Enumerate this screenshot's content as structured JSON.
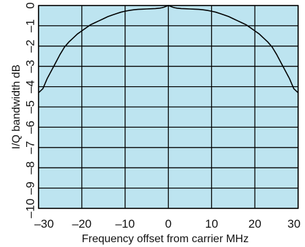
{
  "chart_data": {
    "type": "line",
    "title": "",
    "xlabel": "Frequency offset from carrier MHz",
    "ylabel": "I/Q bandwidth dB",
    "xlim": [
      -30,
      30
    ],
    "ylim": [
      -10,
      0
    ],
    "xticks": [
      -30,
      -20,
      -10,
      0,
      10,
      20,
      30
    ],
    "xtick_labels": [
      "–30",
      "–20",
      "–10",
      "0",
      "10",
      "20",
      "30"
    ],
    "yticks": [
      0,
      -1,
      -2,
      -3,
      -4,
      -5,
      -6,
      -7,
      -8,
      -9,
      -10
    ],
    "ytick_labels": [
      "0",
      "–1",
      "–2",
      "–3",
      "–4",
      "–5",
      "–6",
      "–7",
      "–8",
      "–9",
      "–10"
    ],
    "grid": true,
    "background_color": "#bde4f0",
    "line_color": "#000000",
    "series": [
      {
        "x": [
          -30,
          -29,
          -28,
          -27,
          -26,
          -25,
          -24,
          -23,
          -22,
          -21,
          -20,
          -19,
          -18,
          -17,
          -16,
          -15,
          -14,
          -13,
          -12,
          -11,
          -10,
          -9,
          -8,
          -7,
          -6,
          -5,
          -4,
          -3,
          -2,
          -1.5,
          -1,
          -0.5,
          0,
          0.5,
          1,
          1.5,
          2,
          3,
          4,
          5,
          6,
          7,
          8,
          9,
          10,
          11,
          12,
          13,
          14,
          15,
          16,
          17,
          18,
          19,
          20,
          21,
          22,
          23,
          24,
          25,
          26,
          27,
          28,
          29,
          30
        ],
        "y": [
          -4.3,
          -4.1,
          -3.6,
          -3.2,
          -2.8,
          -2.4,
          -2.05,
          -1.8,
          -1.6,
          -1.4,
          -1.25,
          -1.1,
          -0.95,
          -0.85,
          -0.75,
          -0.65,
          -0.55,
          -0.47,
          -0.4,
          -0.33,
          -0.28,
          -0.24,
          -0.21,
          -0.19,
          -0.18,
          -0.17,
          -0.16,
          -0.15,
          -0.13,
          -0.11,
          -0.08,
          -0.04,
          0,
          -0.04,
          -0.08,
          -0.11,
          -0.13,
          -0.15,
          -0.16,
          -0.17,
          -0.18,
          -0.19,
          -0.21,
          -0.24,
          -0.28,
          -0.33,
          -0.4,
          -0.47,
          -0.55,
          -0.65,
          -0.75,
          -0.85,
          -0.95,
          -1.1,
          -1.25,
          -1.4,
          -1.6,
          -1.8,
          -2.05,
          -2.4,
          -2.8,
          -3.2,
          -3.6,
          -4.1,
          -4.3
        ]
      }
    ]
  }
}
